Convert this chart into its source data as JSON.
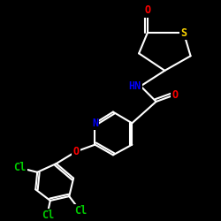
{
  "bg": "#000000",
  "bond_color": "#FFFFFF",
  "bond_width": 1.5,
  "colors": {
    "O": "#FF0000",
    "N": "#0000FF",
    "S": "#FFD700",
    "Cl": "#00CC00",
    "C": "#FFFFFF",
    "H": "#FFFFFF"
  },
  "label_fontsize": 8.5
}
